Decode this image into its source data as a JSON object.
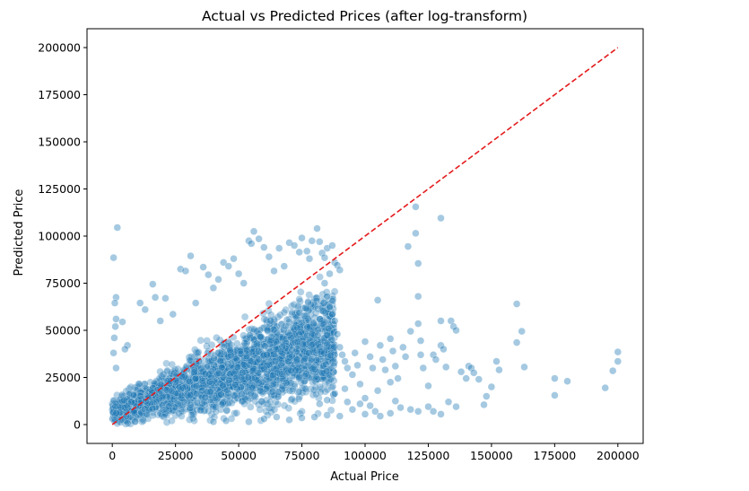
{
  "chart_data": {
    "type": "scatter",
    "title": "Actual vs Predicted Prices (after log-transform)",
    "xlabel": "Actual Price",
    "ylabel": "Predicted Price",
    "xlim": [
      -10000,
      210000
    ],
    "ylim": [
      -10000,
      210000
    ],
    "xticks": [
      0,
      25000,
      50000,
      75000,
      100000,
      125000,
      150000,
      175000,
      200000
    ],
    "yticks": [
      0,
      25000,
      50000,
      75000,
      100000,
      125000,
      150000,
      175000,
      200000
    ],
    "xtick_labels": [
      "0",
      "25000",
      "50000",
      "75000",
      "100000",
      "125000",
      "150000",
      "175000",
      "200000"
    ],
    "ytick_labels": [
      "0",
      "25000",
      "50000",
      "75000",
      "100000",
      "125000",
      "150000",
      "175000",
      "200000"
    ],
    "grid": false,
    "point_color": "#1f77b4",
    "reference_line": {
      "x": [
        0,
        200000
      ],
      "y": [
        0,
        200000
      ],
      "color": "#e41a1c",
      "style": "dashed"
    },
    "series": [
      {
        "values": [
          [
            2000,
            104500
          ],
          [
            500,
            88500
          ],
          [
            1500,
            67500
          ],
          [
            1000,
            64500
          ],
          [
            1500,
            56000
          ],
          [
            1200,
            52000
          ],
          [
            800,
            46000
          ],
          [
            500,
            38000
          ],
          [
            1500,
            30000
          ],
          [
            4000,
            54500
          ],
          [
            6000,
            42000
          ],
          [
            5000,
            40000
          ],
          [
            11000,
            64500
          ],
          [
            13000,
            61000
          ],
          [
            16000,
            74500
          ],
          [
            17000,
            67500
          ],
          [
            19000,
            55000
          ],
          [
            21000,
            67000
          ],
          [
            24000,
            58500
          ],
          [
            27000,
            82500
          ],
          [
            29000,
            81500
          ],
          [
            31000,
            89500
          ],
          [
            33000,
            64500
          ],
          [
            36000,
            83500
          ],
          [
            38000,
            79500
          ],
          [
            40000,
            72500
          ],
          [
            42000,
            77000
          ],
          [
            44000,
            86000
          ],
          [
            46000,
            84000
          ],
          [
            48000,
            88000
          ],
          [
            50000,
            80000
          ],
          [
            52000,
            75000
          ],
          [
            54000,
            97500
          ],
          [
            55000,
            96000
          ],
          [
            56000,
            102500
          ],
          [
            58000,
            98500
          ],
          [
            60000,
            94000
          ],
          [
            62000,
            89000
          ],
          [
            64000,
            81500
          ],
          [
            66000,
            93500
          ],
          [
            68000,
            84000
          ],
          [
            70000,
            96500
          ],
          [
            72000,
            95000
          ],
          [
            74000,
            91500
          ],
          [
            75000,
            99000
          ],
          [
            77000,
            92000
          ],
          [
            78000,
            88000
          ],
          [
            79000,
            97500
          ],
          [
            81000,
            104000
          ],
          [
            82000,
            97000
          ],
          [
            83000,
            91000
          ],
          [
            84000,
            88500
          ],
          [
            85000,
            93500
          ],
          [
            87000,
            95000
          ],
          [
            88000,
            86000
          ],
          [
            89000,
            84500
          ],
          [
            90000,
            82000
          ],
          [
            86000,
            80000
          ],
          [
            84000,
            75000
          ],
          [
            85000,
            68000
          ],
          [
            86000,
            62500
          ],
          [
            87000,
            58500
          ],
          [
            88000,
            55000
          ],
          [
            89000,
            48000
          ],
          [
            90000,
            41000
          ],
          [
            91000,
            37000
          ],
          [
            92000,
            33500
          ],
          [
            93000,
            30000
          ],
          [
            95000,
            26500
          ],
          [
            96000,
            38000
          ],
          [
            97000,
            31500
          ],
          [
            98000,
            21500
          ],
          [
            100000,
            44000
          ],
          [
            102000,
            36000
          ],
          [
            103000,
            30000
          ],
          [
            105000,
            66000
          ],
          [
            106000,
            42000
          ],
          [
            107000,
            34500
          ],
          [
            108000,
            29000
          ],
          [
            110000,
            45500
          ],
          [
            111000,
            39000
          ],
          [
            112000,
            31000
          ],
          [
            113000,
            24500
          ],
          [
            115000,
            41000
          ],
          [
            116000,
            36000
          ],
          [
            117000,
            94500
          ],
          [
            118000,
            49500
          ],
          [
            120000,
            115500
          ],
          [
            120000,
            101500
          ],
          [
            121000,
            85500
          ],
          [
            121000,
            68000
          ],
          [
            121000,
            53500
          ],
          [
            122000,
            44500
          ],
          [
            122000,
            37000
          ],
          [
            123000,
            30000
          ],
          [
            125000,
            20500
          ],
          [
            127000,
            37000
          ],
          [
            128000,
            34500
          ],
          [
            130000,
            109500
          ],
          [
            130000,
            55000
          ],
          [
            130000,
            42000
          ],
          [
            131000,
            40000
          ],
          [
            132000,
            30500
          ],
          [
            134000,
            55000
          ],
          [
            135000,
            52000
          ],
          [
            136000,
            50000
          ],
          [
            138000,
            28000
          ],
          [
            140000,
            24500
          ],
          [
            141000,
            31000
          ],
          [
            142000,
            30000
          ],
          [
            143000,
            27500
          ],
          [
            145000,
            24000
          ],
          [
            147000,
            10500
          ],
          [
            148000,
            15000
          ],
          [
            150000,
            20000
          ],
          [
            152000,
            33500
          ],
          [
            153000,
            29000
          ],
          [
            160000,
            64000
          ],
          [
            160000,
            43500
          ],
          [
            162000,
            49500
          ],
          [
            163000,
            30500
          ],
          [
            175000,
            24500
          ],
          [
            175000,
            15500
          ],
          [
            180000,
            23000
          ],
          [
            195000,
            19500
          ],
          [
            198000,
            28500
          ],
          [
            200000,
            38500
          ],
          [
            200000,
            33500
          ],
          [
            40000,
            1500
          ],
          [
            45000,
            2000
          ],
          [
            54000,
            1500
          ],
          [
            60000,
            3000
          ],
          [
            65000,
            4000
          ],
          [
            70000,
            2500
          ],
          [
            75000,
            3500
          ],
          [
            80000,
            4000
          ],
          [
            85000,
            5000
          ],
          [
            90000,
            4500
          ],
          [
            95000,
            8000
          ],
          [
            100000,
            5500
          ],
          [
            102000,
            10000
          ],
          [
            104000,
            7000
          ],
          [
            106000,
            4500
          ],
          [
            110000,
            6000
          ],
          [
            112000,
            12500
          ],
          [
            114000,
            9000
          ],
          [
            118000,
            8000
          ],
          [
            121000,
            7000
          ],
          [
            125000,
            9500
          ],
          [
            127000,
            7000
          ],
          [
            130000,
            5500
          ],
          [
            133000,
            12000
          ],
          [
            136000,
            9500
          ],
          [
            110000,
            22500
          ],
          [
            105000,
            18000
          ],
          [
            100000,
            14000
          ],
          [
            98000,
            11000
          ],
          [
            93000,
            12000
          ],
          [
            92000,
            19000
          ],
          [
            88000,
            16500
          ],
          [
            85000,
            13000
          ],
          [
            82000,
            11000
          ]
        ]
      }
    ]
  }
}
